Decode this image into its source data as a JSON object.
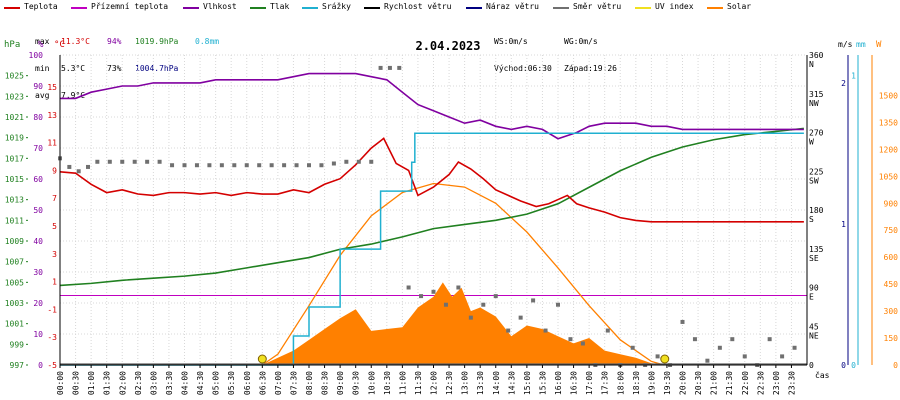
{
  "legend": [
    {
      "label": "Teplota",
      "color": "#d40000"
    },
    {
      "label": "Přízemní teplota",
      "color": "#c000c0"
    },
    {
      "label": "Vlhkost",
      "color": "#8000a0"
    },
    {
      "label": "Tlak",
      "color": "#208020"
    },
    {
      "label": "Srážky",
      "color": "#20b0d0"
    },
    {
      "label": "Rychlost větru",
      "color": "#000000"
    },
    {
      "label": "Náraz větru",
      "color": "#000080"
    },
    {
      "label": "Směr větru",
      "color": "#707070"
    },
    {
      "label": "UV index",
      "color": "#f0e020"
    },
    {
      "label": "Solar",
      "color": "#ff8000"
    }
  ],
  "stats": {
    "max_label": "max",
    "max_temp": "11.3°C",
    "max_hum": "94%",
    "max_press": "1019.9hPa",
    "max_rain": "0.8mm",
    "min_label": "min",
    "min_temp": "5.3°C",
    "min_hum": "73%",
    "min_press": "1004.7hPa",
    "avg_label": "avg",
    "avg_temp": "7.9°C",
    "ws": "WS:0m/s",
    "wg": "WG:0m/s",
    "sunrise": "Východ:06:30",
    "sunset": "Západ:19:26"
  },
  "colors": {
    "temp": "#d40000",
    "feels": "#c000c0",
    "hum": "#8000a0",
    "press": "#208020",
    "rain": "#20b0d0",
    "wind": "#606060",
    "dir": "#707070",
    "uv": "#e0d000",
    "solar": "#ff8000",
    "grid": "#d8d8d8"
  },
  "chart_data": {
    "type": "line",
    "title": "2.04.2023",
    "x_unit_label": "čas",
    "x_ticks": [
      "00:00",
      "00:30",
      "01:00",
      "01:30",
      "02:00",
      "02:30",
      "03:00",
      "03:30",
      "04:00",
      "04:30",
      "05:00",
      "05:30",
      "06:00",
      "06:30",
      "07:00",
      "07:30",
      "08:00",
      "08:30",
      "09:00",
      "09:30",
      "10:00",
      "10:30",
      "11:00",
      "11:30",
      "12:00",
      "12:30",
      "13:00",
      "13:30",
      "14:00",
      "14:30",
      "15:00",
      "15:30",
      "16:00",
      "16:30",
      "17:00",
      "17:30",
      "18:00",
      "18:30",
      "19:00",
      "19:30",
      "20:00",
      "20:30",
      "21:00",
      "21:30",
      "22:00",
      "22:30",
      "23:00",
      "23:30"
    ],
    "axes": {
      "hpa": {
        "label": "hPa",
        "ticks": [
          997,
          999,
          1001,
          1003,
          1005,
          1007,
          1009,
          1011,
          1013,
          1015,
          1017,
          1019,
          1021,
          1023,
          1025
        ],
        "range": [
          997,
          1027
        ]
      },
      "pct": {
        "label": "%",
        "ticks": [
          0,
          10,
          20,
          30,
          40,
          50,
          60,
          70,
          80,
          90,
          100
        ],
        "range": [
          0,
          100
        ]
      },
      "degc": {
        "label": "°C",
        "ticks": [
          -5,
          -3,
          -1,
          1,
          3,
          5,
          7,
          9,
          11,
          13,
          15
        ],
        "range": [
          -5,
          17.3
        ]
      },
      "dir": {
        "ticks": [
          "0",
          "45 NE",
          "90 E",
          "135 SE",
          "180 S",
          "225 SW",
          "270 W",
          "315 NW",
          "360 N"
        ],
        "range": [
          0,
          360
        ]
      },
      "ms": {
        "label": "m/s",
        "ticks": [
          0,
          1,
          2
        ],
        "range": [
          0,
          2
        ]
      },
      "mm": {
        "label": "mm",
        "ticks": [
          0,
          1
        ],
        "range": [
          0,
          1
        ]
      },
      "w": {
        "label": "W",
        "ticks": [
          0,
          150,
          300,
          450,
          600,
          750,
          900,
          1050,
          1200,
          1350,
          1500
        ],
        "range": [
          0,
          1725
        ]
      }
    },
    "series": [
      {
        "name": "Teplota",
        "unit": "°C",
        "x": [
          0,
          0.5,
          1,
          1.5,
          2,
          2.5,
          3,
          3.5,
          4,
          4.5,
          5,
          5.5,
          6,
          6.5,
          7,
          7.5,
          8,
          8.5,
          9,
          9.5,
          10,
          10.4,
          10.8,
          11.2,
          11.5,
          12,
          12.5,
          12.8,
          13.2,
          13.6,
          14,
          14.4,
          14.8,
          15.3,
          15.7,
          16,
          16.3,
          16.6,
          17,
          17.5,
          18,
          18.5,
          19,
          19.5,
          20,
          21,
          22,
          23,
          23.9
        ],
        "y": [
          8.9,
          8.8,
          8.0,
          7.4,
          7.6,
          7.3,
          7.2,
          7.4,
          7.4,
          7.3,
          7.4,
          7.2,
          7.4,
          7.3,
          7.3,
          7.6,
          7.4,
          8.0,
          8.4,
          9.4,
          10.6,
          11.3,
          9.5,
          9.0,
          7.2,
          7.8,
          8.7,
          9.6,
          9.1,
          8.4,
          7.6,
          7.2,
          6.8,
          6.4,
          6.6,
          6.9,
          7.2,
          6.6,
          6.3,
          6.0,
          5.6,
          5.4,
          5.3,
          5.3,
          5.3,
          5.3,
          5.3,
          5.3,
          5.3
        ]
      },
      {
        "name": "Vlhkost",
        "unit": "%",
        "x": [
          0,
          0.5,
          1,
          1.5,
          2,
          2.5,
          3,
          3.5,
          4,
          4.5,
          5,
          5.5,
          6,
          6.5,
          7,
          7.5,
          8,
          8.5,
          9,
          9.5,
          10,
          10.5,
          11,
          11.5,
          12,
          12.5,
          13,
          13.5,
          14,
          14.5,
          15,
          15.5,
          16,
          16.3,
          16.6,
          17,
          17.5,
          18,
          18.5,
          19,
          19.5,
          20,
          21,
          22,
          23,
          23.9
        ],
        "y": [
          86,
          86,
          88,
          89,
          90,
          90,
          91,
          91,
          91,
          91,
          92,
          92,
          92,
          92,
          92,
          93,
          94,
          94,
          94,
          94,
          93,
          92,
          88,
          84,
          82,
          80,
          78,
          79,
          77,
          76,
          77,
          76,
          73,
          74,
          75,
          77,
          78,
          78,
          78,
          77,
          77,
          76,
          76,
          76,
          76,
          76
        ]
      },
      {
        "name": "Tlak",
        "unit": "hPa",
        "x": [
          0,
          1,
          2,
          3,
          4,
          5,
          6,
          7,
          8,
          9,
          10,
          11,
          12,
          13,
          14,
          15,
          16,
          17,
          18,
          19,
          20,
          21,
          22,
          23,
          23.9
        ],
        "y": [
          1004.7,
          1004.9,
          1005.2,
          1005.4,
          1005.6,
          1005.9,
          1006.4,
          1006.9,
          1007.4,
          1008.2,
          1008.7,
          1009.4,
          1010.2,
          1010.6,
          1011.0,
          1011.6,
          1012.6,
          1014.2,
          1015.8,
          1017.1,
          1018.1,
          1018.8,
          1019.3,
          1019.6,
          1019.9
        ]
      },
      {
        "name": "Srážky",
        "unit": "mm",
        "x": [
          0,
          7.5,
          7.5,
          8,
          8,
          9,
          9,
          10.3,
          10.3,
          11.3,
          11.3,
          11.4,
          11.4,
          12,
          12,
          23.9
        ],
        "y": [
          0,
          0,
          0.1,
          0.1,
          0.2,
          0.2,
          0.4,
          0.4,
          0.6,
          0.6,
          0.7,
          0.7,
          0.8,
          0.8,
          0.8,
          0.8
        ]
      },
      {
        "name": "Rychlost větru",
        "unit": "m/s",
        "x": [
          0,
          23.9
        ],
        "y": [
          0,
          0
        ]
      },
      {
        "name": "Solar",
        "unit": "W",
        "x": [
          6.5,
          7,
          7.5,
          8,
          8.5,
          9,
          9.5,
          10,
          10.5,
          11,
          11.5,
          12,
          12.3,
          12.6,
          12.9,
          13.2,
          13.5,
          14,
          14.5,
          15,
          15.5,
          16,
          16.5,
          17,
          17.5,
          18,
          18.5,
          19,
          19.5
        ],
        "y": [
          0,
          40,
          80,
          140,
          200,
          260,
          310,
          190,
          200,
          210,
          320,
          380,
          460,
          380,
          430,
          300,
          320,
          270,
          160,
          220,
          200,
          160,
          120,
          150,
          80,
          60,
          40,
          10,
          0
        ]
      },
      {
        "name": "Solar clear-sky",
        "unit": "W",
        "x": [
          6.5,
          7,
          8,
          9,
          10,
          11,
          12,
          13,
          14,
          15,
          16,
          17,
          18,
          19,
          19.4
        ],
        "y": [
          0,
          60,
          330,
          610,
          830,
          960,
          1010,
          990,
          900,
          740,
          540,
          330,
          140,
          20,
          0
        ]
      },
      {
        "name": "Směr větru",
        "unit": "°",
        "x": [
          0,
          0.3,
          0.6,
          0.9,
          1.2,
          1.6,
          2,
          2.4,
          2.8,
          3.2,
          3.6,
          4,
          4.4,
          4.8,
          5.2,
          5.6,
          6,
          6.4,
          6.8,
          7.2,
          7.6,
          8,
          8.4,
          8.8,
          9.2,
          9.6,
          10,
          10.3,
          10.6,
          10.9,
          11.2,
          11.6,
          12,
          12.4,
          12.8,
          13.2,
          13.6,
          14,
          14.4,
          14.8,
          15.2,
          15.6,
          16,
          16.4,
          16.8,
          17.2,
          17.6,
          18,
          18.4,
          18.8,
          19.2,
          19.6,
          20,
          20.4,
          20.8,
          21.2,
          21.6,
          22,
          22.4,
          22.8,
          23.2,
          23.6
        ],
        "y": [
          240,
          230,
          225,
          230,
          236,
          236,
          236,
          236,
          236,
          236,
          232,
          232,
          232,
          232,
          232,
          232,
          232,
          232,
          232,
          232,
          232,
          232,
          232,
          234,
          236,
          236,
          236,
          345,
          345,
          345,
          90,
          80,
          85,
          70,
          90,
          55,
          70,
          80,
          40,
          55,
          75,
          40,
          70,
          30,
          25,
          0,
          40,
          0,
          20,
          0,
          10,
          0,
          50,
          30,
          5,
          20,
          30,
          10,
          0,
          30,
          10,
          20
        ]
      }
    ],
    "markers": [
      {
        "label": "sunrise",
        "x": 6.5
      },
      {
        "label": "sunset",
        "x": 19.43
      }
    ]
  }
}
